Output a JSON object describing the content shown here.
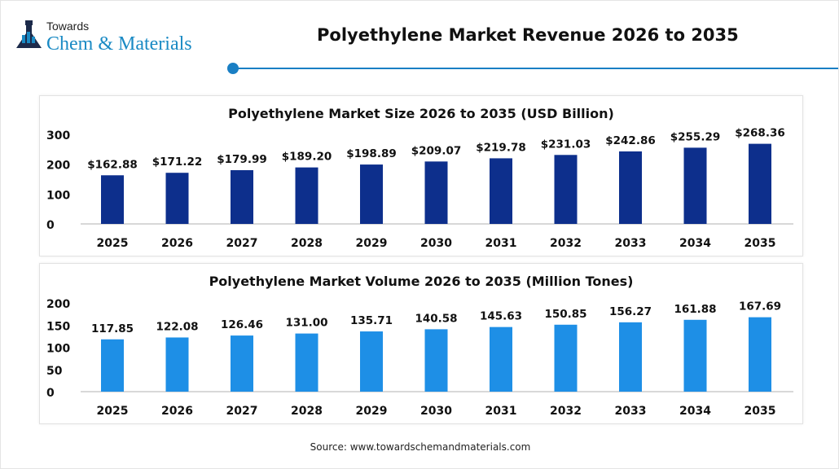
{
  "header": {
    "logo_top": "Towards",
    "logo_main": "Chem & Materials",
    "title": "Polyethylene Market Revenue 2026 to 2035",
    "accent": "#1a7fc4"
  },
  "chart_data": [
    {
      "type": "bar",
      "title": "Polyethylene Market Size 2026 to 2035 (USD Billion)",
      "categories": [
        "2025",
        "2026",
        "2027",
        "2028",
        "2029",
        "2030",
        "2031",
        "2032",
        "2033",
        "2034",
        "2035"
      ],
      "values": [
        162.88,
        171.22,
        179.99,
        189.2,
        198.89,
        209.07,
        219.78,
        231.03,
        242.86,
        255.29,
        268.36
      ],
      "labels": [
        "$162.88",
        "$171.22",
        "$179.99",
        "$189.20",
        "$198.89",
        "$209.07",
        "$219.78",
        "$231.03",
        "$242.86",
        "$255.29",
        "$268.36"
      ],
      "yticks": [
        "0",
        "100",
        "200",
        "300"
      ],
      "ylim": [
        0,
        300
      ],
      "color": "#0d2f8c",
      "grid": false
    },
    {
      "type": "bar",
      "title": "Polyethylene Market Volume 2026 to 2035 (Million Tones)",
      "categories": [
        "2025",
        "2026",
        "2027",
        "2028",
        "2029",
        "2030",
        "2031",
        "2032",
        "2033",
        "2034",
        "2035"
      ],
      "values": [
        117.85,
        122.08,
        126.46,
        131.0,
        135.71,
        140.58,
        145.63,
        150.85,
        156.27,
        161.88,
        167.69
      ],
      "labels": [
        "117.85",
        "122.08",
        "126.46",
        "131.00",
        "135.71",
        "140.58",
        "145.63",
        "150.85",
        "156.27",
        "161.88",
        "167.69"
      ],
      "yticks": [
        "0",
        "50",
        "100",
        "150",
        "200"
      ],
      "ylim": [
        0,
        200
      ],
      "color": "#1e8fe6",
      "grid": false
    }
  ],
  "source": "Source: www.towardschemandmaterials.com"
}
